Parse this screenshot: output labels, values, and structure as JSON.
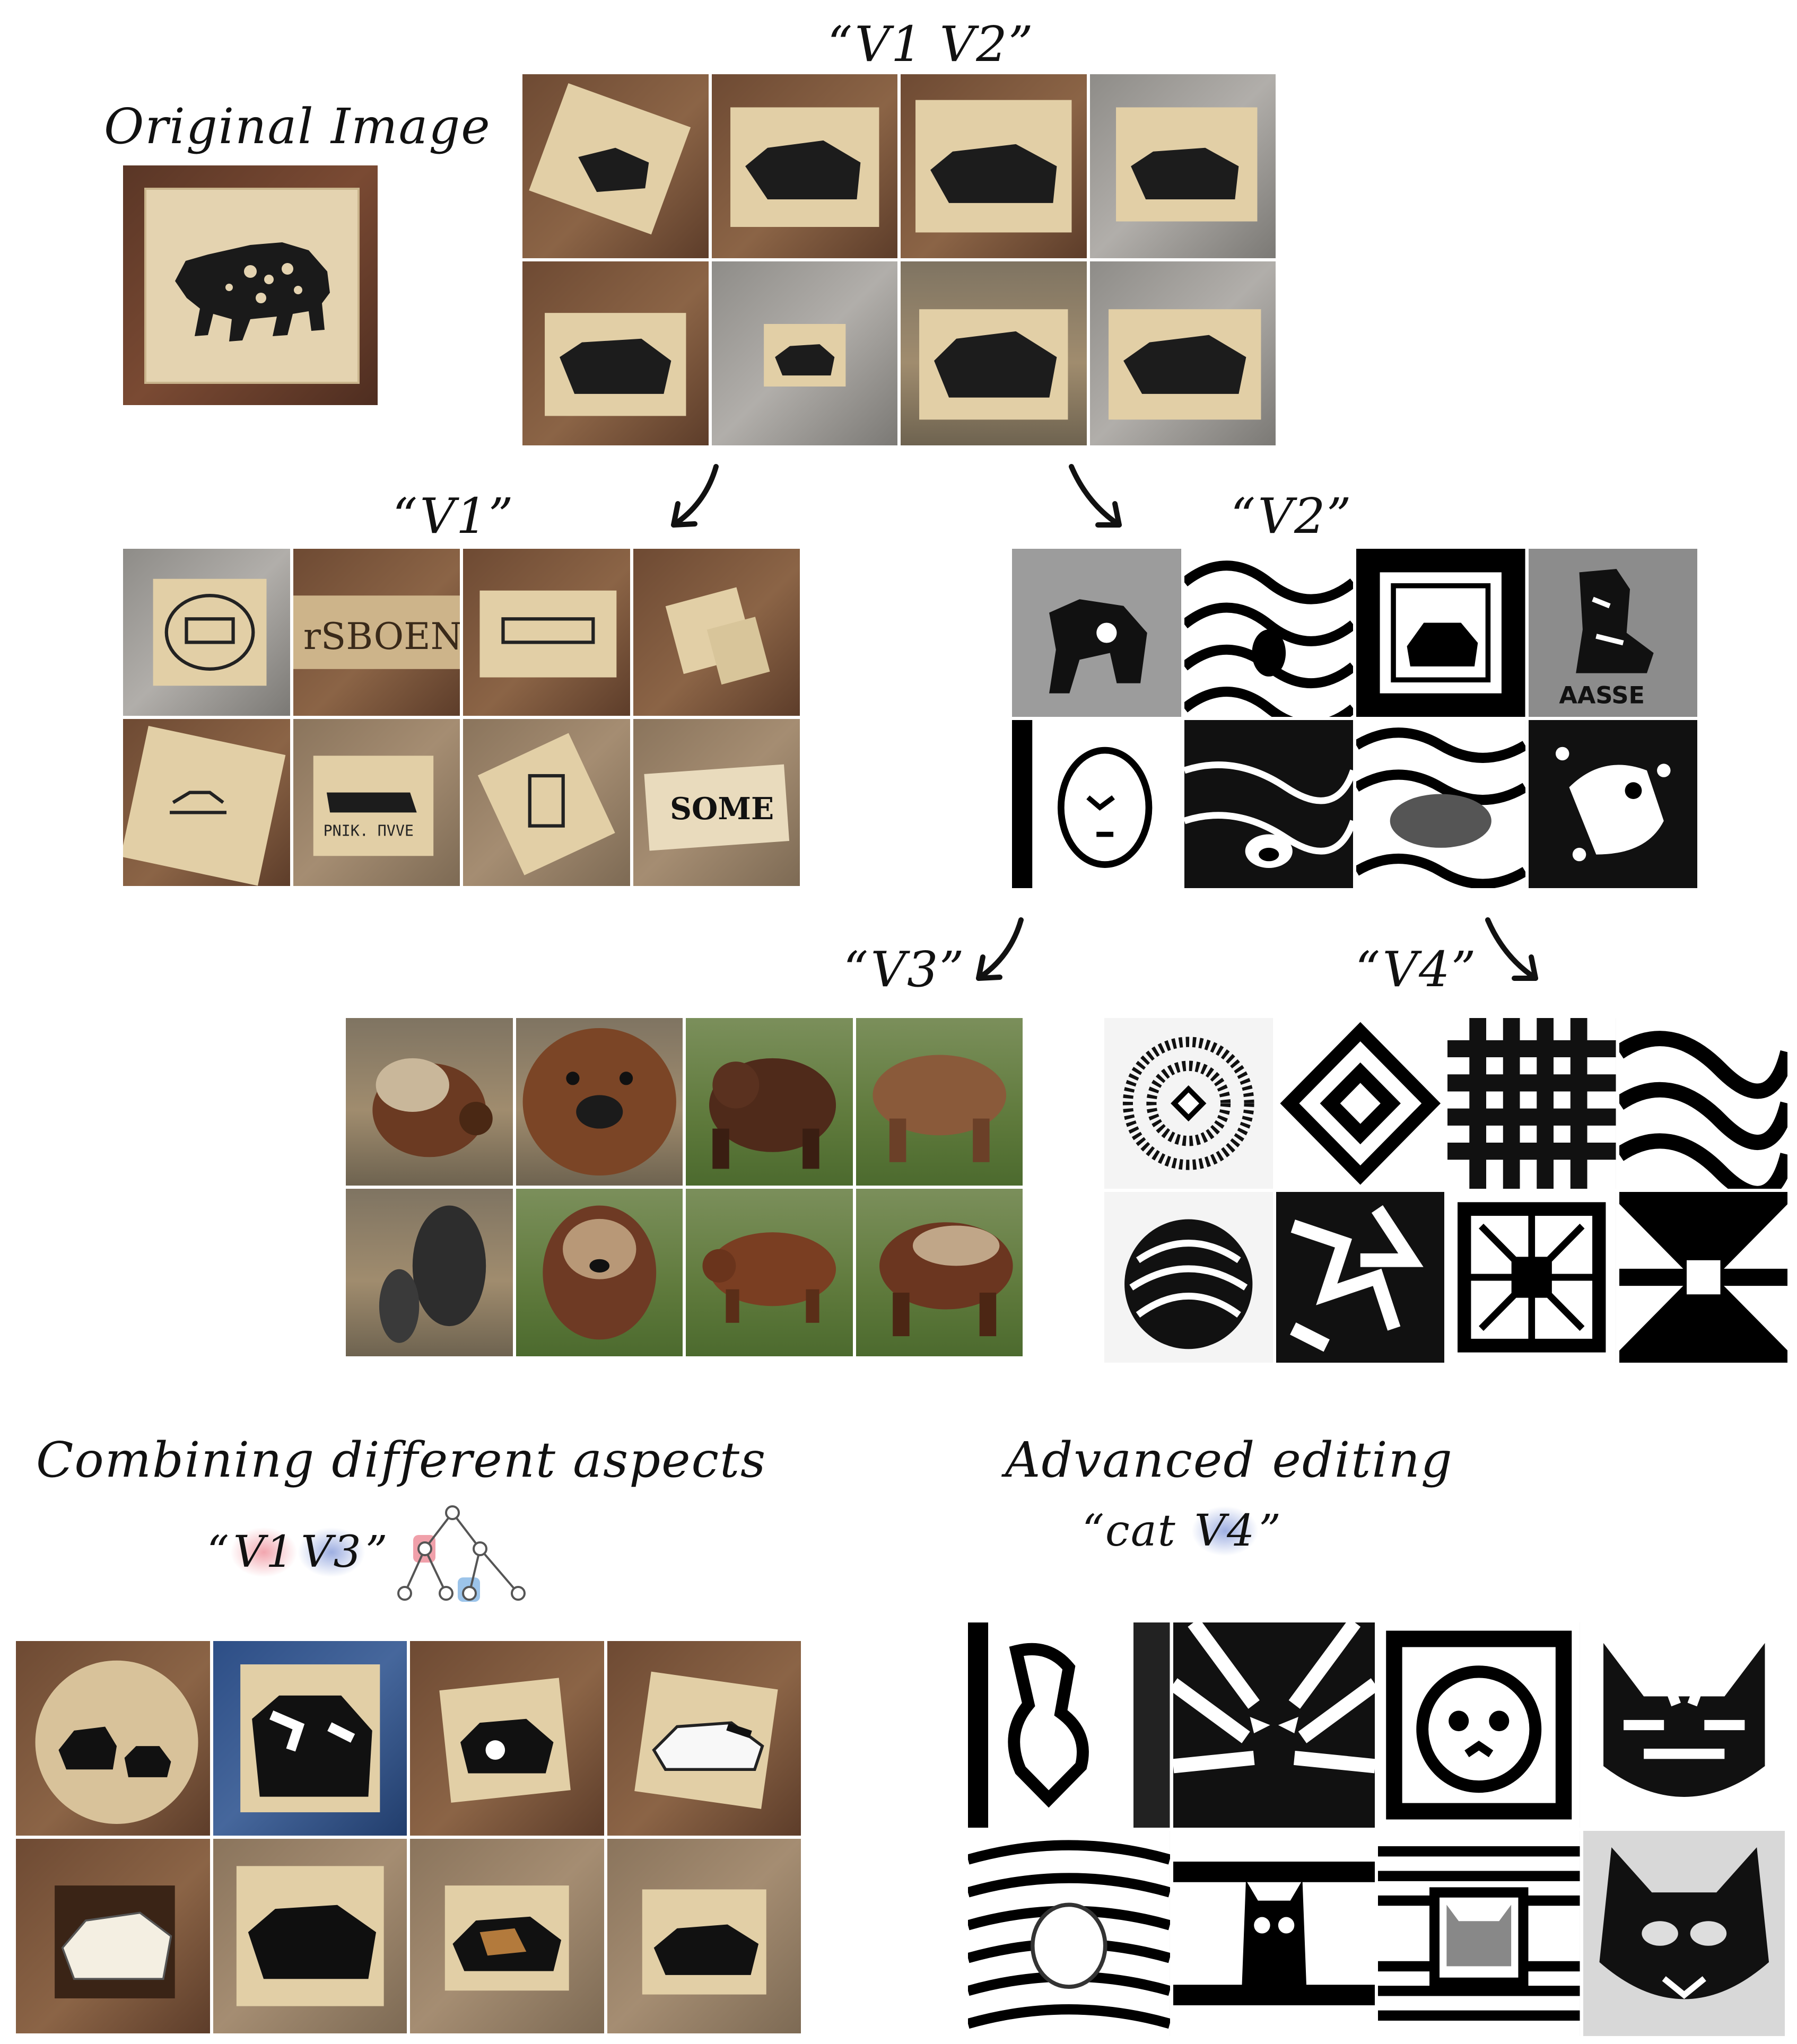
{
  "labels": {
    "original": "Original Image",
    "v1v2": "“V1 V2”",
    "v1": "“V1”",
    "v2": "“V2”",
    "v3": "“V3”",
    "v4": "“V4”",
    "combining": "Combining different aspects",
    "combo_open": "“",
    "combo_tok1": "V1",
    "combo_tok2": "V3",
    "combo_close": "”",
    "advanced": "Advanced editing",
    "cat_open": "“cat ",
    "cat_tok": "V4",
    "cat_close": "”"
  },
  "colors": {
    "token_red": "#f0a0aa",
    "token_blue": "#8ca0dc",
    "arrow": "#111111"
  },
  "icons": {
    "tree": "tree-diagram-icon",
    "arrow": "curved-arrow-icon"
  }
}
